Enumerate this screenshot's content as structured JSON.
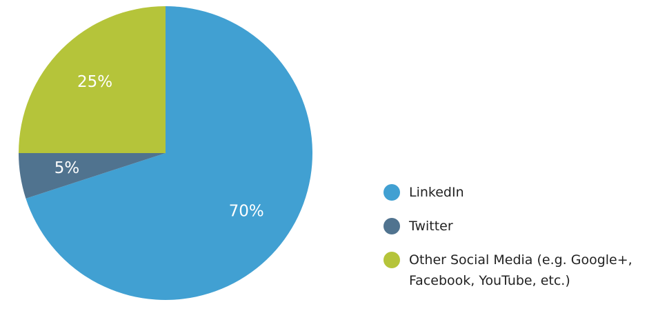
{
  "chart_data": {
    "type": "pie",
    "categories": [
      "LinkedIn",
      "Twitter",
      "Other Social Media (e.g. Google+, Facebook, YouTube, etc.)"
    ],
    "values": [
      70,
      5,
      25
    ],
    "value_labels": [
      "70%",
      "5%",
      "25%"
    ],
    "colors": [
      "#41a0d2",
      "#50738f",
      "#b5c43a"
    ],
    "legend": "right"
  }
}
